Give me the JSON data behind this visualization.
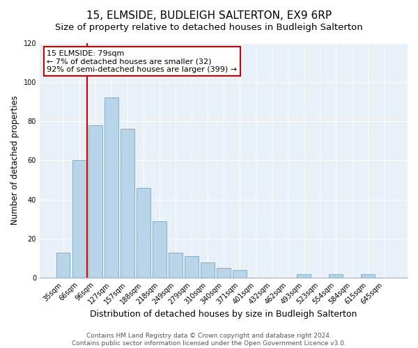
{
  "title": "15, ELMSIDE, BUDLEIGH SALTERTON, EX9 6RP",
  "subtitle": "Size of property relative to detached houses in Budleigh Salterton",
  "xlabel": "Distribution of detached houses by size in Budleigh Salterton",
  "ylabel": "Number of detached properties",
  "bar_labels": [
    "35sqm",
    "66sqm",
    "96sqm",
    "127sqm",
    "157sqm",
    "188sqm",
    "218sqm",
    "249sqm",
    "279sqm",
    "310sqm",
    "340sqm",
    "371sqm",
    "401sqm",
    "432sqm",
    "462sqm",
    "493sqm",
    "523sqm",
    "554sqm",
    "584sqm",
    "615sqm",
    "645sqm"
  ],
  "bar_values": [
    13,
    60,
    78,
    92,
    76,
    46,
    29,
    13,
    11,
    8,
    5,
    4,
    0,
    0,
    0,
    2,
    0,
    2,
    0,
    2,
    0
  ],
  "bar_color": "#b8d4e8",
  "bar_edge_color": "#6699bb",
  "vline_color": "#cc0000",
  "annotation_text": "15 ELMSIDE: 79sqm\n← 7% of detached houses are smaller (32)\n92% of semi-detached houses are larger (399) →",
  "annotation_box_edgecolor": "#cc0000",
  "plot_bg_color": "#e8f0f8",
  "ylim": [
    0,
    120
  ],
  "yticks": [
    0,
    20,
    40,
    60,
    80,
    100,
    120
  ],
  "footer1": "Contains HM Land Registry data © Crown copyright and database right 2024.",
  "footer2": "Contains public sector information licensed under the Open Government Licence v3.0.",
  "title_fontsize": 11,
  "subtitle_fontsize": 9.5,
  "xlabel_fontsize": 9,
  "ylabel_fontsize": 8.5,
  "tick_fontsize": 7,
  "annotation_fontsize": 8,
  "footer_fontsize": 6.5
}
